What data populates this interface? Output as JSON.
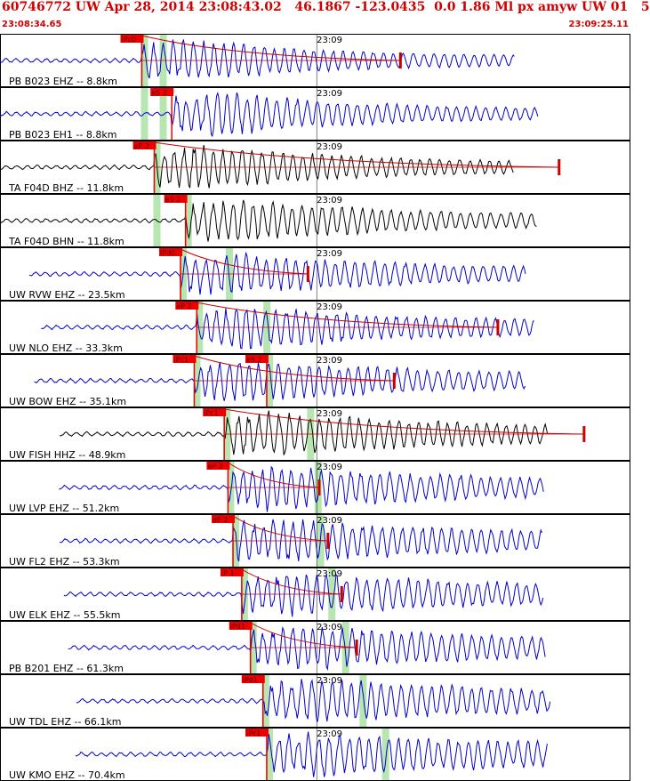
{
  "header": {
    "title": "60746772 UW Apr 28, 2014 23:08:43.02   46.1867 -123.0435  0.0 1.86 Ml px amyw UW 01   5",
    "start_time": "23:08:34.65",
    "end_time": "23:09:25.11"
  },
  "colors": {
    "header_text": "#d00000",
    "pick_box": "#ee0000",
    "pick_text": "#550000",
    "window_band": "#b8e6b0",
    "coda_line": "#cc0000",
    "trace_blue": "#0000cc",
    "trace_black": "#000000",
    "duration_line": "#000000"
  },
  "chart_data": {
    "type": "line",
    "title": "60746772 UW Apr 28, 2014 23:08:43.02   46.1867 -123.0435  0.0 1.86 Ml px amyw UW 01   5",
    "x_axis": {
      "start": "23:08:34.65",
      "end": "23:09:25.11",
      "minute_tick": "23:09"
    },
    "grid_vertical": true,
    "panels": [
      {
        "station": "PB B023 EHZ -- 8.8km",
        "color": "blue",
        "tick_label": "23:09",
        "picks": [
          {
            "label": "iPc0",
            "time": "23:08:46.0"
          }
        ],
        "windows": [
          "23:08:46.0",
          "23:08:47.5"
        ],
        "coda_end": "23:09:06.7"
      },
      {
        "station": "PB B023 EH1 -- 8.8km",
        "color": "blue",
        "tick_label": "23:09",
        "picks": [
          {
            "label": "eS 2",
            "time": "23:08:48.4"
          }
        ],
        "windows": [
          "23:08:46.0",
          "23:08:47.5"
        ],
        "coda_end": null
      },
      {
        "station": "TA F04D BHZ -- 11.8km",
        "color": "black",
        "tick_label": "23:09",
        "picks": [
          {
            "label": "eP 2",
            "time": "23:08:47.0"
          }
        ],
        "windows": [
          "23:08:47.0"
        ],
        "coda_end": "23:09:19.4"
      },
      {
        "station": "TA F04D BHN -- 11.8km",
        "color": "black",
        "tick_label": "23:09",
        "picks": [
          {
            "label": "eS 2",
            "time": "23:08:49.5"
          }
        ],
        "windows": [
          "23:08:47.0",
          "23:08:49.5"
        ],
        "coda_end": null
      },
      {
        "station": "UW RVW EHZ -- 23.5km",
        "color": "blue",
        "tick_label": "23:09",
        "picks": [
          {
            "label": "iPd0",
            "time": "23:08:49.1"
          }
        ],
        "windows": [
          "23:08:49.1",
          "23:08:52.8"
        ],
        "coda_end": "23:08:59.3"
      },
      {
        "station": "UW NLO EHZ -- 33.3km",
        "color": "blue",
        "tick_label": "23:09",
        "picks": [
          {
            "label": "eP 2",
            "time": "23:08:50.4"
          }
        ],
        "windows": [
          "23:08:50.4",
          "23:08:55.8"
        ],
        "coda_end": "23:09:14.5"
      },
      {
        "station": "UW BOW EHZ -- 35.1km",
        "color": "blue",
        "tick_label": "23:09",
        "picks": [
          {
            "label": "iPc1",
            "time": "23:08:50.2"
          },
          {
            "label": "eS 2",
            "time": "23:08:56.0"
          }
        ],
        "windows": [
          "23:08:50.2",
          "23:08:56.0"
        ],
        "coda_end": "23:09:06.2"
      },
      {
        "station": "UW FISH HHZ -- 48.9km",
        "color": "black",
        "tick_label": "23:09",
        "picks": [
          {
            "label": "iPc1",
            "time": "23:08:52.6"
          }
        ],
        "windows": [
          "23:08:52.6",
          "23:08:59.3"
        ],
        "coda_end": "23:09:21.4"
      },
      {
        "station": "UW LVP EHZ -- 51.2km",
        "color": "blue",
        "tick_label": "23:09",
        "picks": [
          {
            "label": "eP 2",
            "time": "23:08:52.9"
          }
        ],
        "windows": [
          "23:08:52.9",
          "23:08:59.9"
        ],
        "coda_end": "23:09:00.2"
      },
      {
        "station": "UW FL2 EHZ -- 53.3km",
        "color": "blue",
        "tick_label": "23:09",
        "picks": [
          {
            "label": "eP 2",
            "time": "23:08:53.3"
          }
        ],
        "windows": [
          "23:08:53.3",
          "23:09:00.1"
        ],
        "coda_end": "23:09:00.9"
      },
      {
        "station": "UW ELK EHZ -- 55.5km",
        "color": "blue",
        "tick_label": "23:09",
        "picks": [
          {
            "label": "iP 1",
            "time": "23:08:54.0"
          }
        ],
        "windows": [
          "23:08:54.0",
          "23:09:01.0"
        ],
        "coda_end": "23:09:02.0"
      },
      {
        "station": "PB B201 EHZ -- 61.3km",
        "color": "blue",
        "tick_label": "23:09",
        "picks": [
          {
            "label": "iPd1",
            "time": "23:08:54.7"
          }
        ],
        "windows": [
          "23:08:54.7",
          "23:09:02.1"
        ],
        "coda_end": "23:09:03.2"
      },
      {
        "station": "UW TDL EHZ -- 66.1km",
        "color": "blue",
        "tick_label": "23:09",
        "picks": [
          {
            "label": "iPd1",
            "time": "23:08:55.7"
          }
        ],
        "windows": [
          "23:08:55.7",
          "23:09:03.5"
        ],
        "coda_end": null
      },
      {
        "station": "UW KMO EHZ -- 70.4km",
        "color": "blue",
        "tick_label": "23:09",
        "picks": [
          {
            "label": "iPc1",
            "time": "23:08:56.0"
          }
        ],
        "windows": [
          "23:08:56.0",
          "23:09:05.3"
        ],
        "coda_end": null
      }
    ]
  }
}
